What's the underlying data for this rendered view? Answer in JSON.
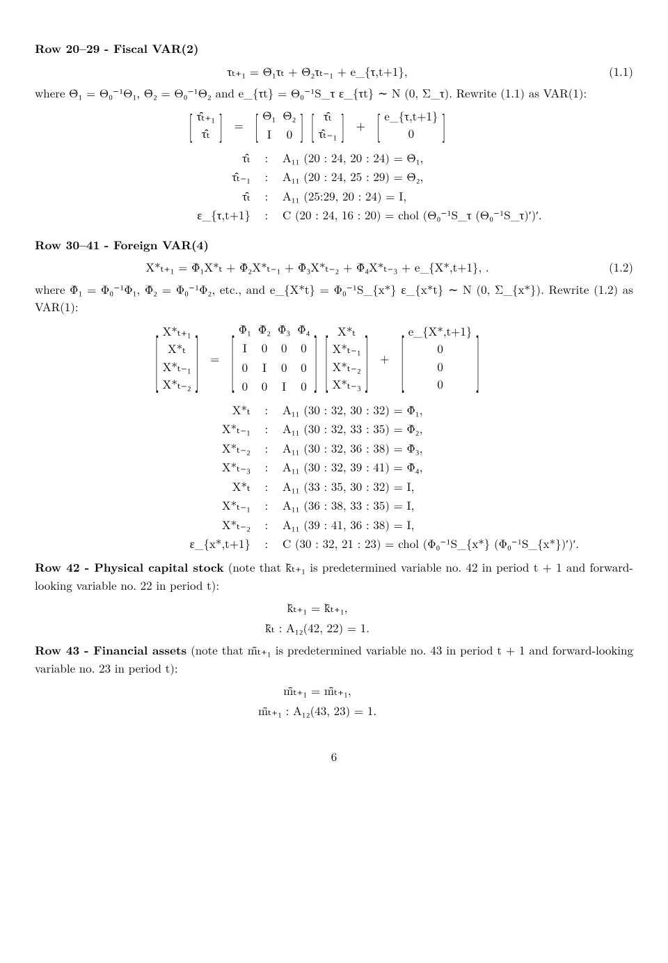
{
  "section1": {
    "heading": "Row 20–29 - Fiscal VAR(2)",
    "eq1_1": "τₜ₊₁ = Θ̃₁τₜ + Θ̃₂τₜ₋₁ + e_{τ,t+1},",
    "eq1_1_num": "(1.1)",
    "line_where": "where Θ̃₁ = Θ₀⁻¹Θ₁, Θ̃₂ = Θ₀⁻¹Θ₂ and e_{τt} = Θ₀⁻¹S_τ ε_{τt} ∼ N (0, Σ_τ). Rewrite (1.1) as VAR(1):",
    "mat_lhs_r1": "τ̂ₜ₊₁",
    "mat_lhs_r2": "τ̂ₜ",
    "matA_r1c1": "Θ̃₁",
    "matA_r1c2": "Θ̃₂",
    "matA_r2c1": "I",
    "matA_r2c2": "0",
    "mat_rhs_r1": "τ̂ₜ",
    "mat_rhs_r2": "τ̂ₜ₋₁",
    "mat_err_r1": "e_{τ,t+1}",
    "mat_err_r2": "0",
    "map1_l": "τ̂ₜ",
    "map1_r": "A₁₁ (20 : 24, 20 : 24) = Θ̃₁,",
    "map2_l": "τ̂ₜ₋₁",
    "map2_r": "A₁₁ (20 : 24, 25 : 29) = Θ̃₂,",
    "map3_l": "τ̂ₜ",
    "map3_r": "A₁₁ (25:29, 20 : 24) = I,",
    "map4_l": "ε_{τ,t+1}",
    "map4_r": "C (20 : 24, 16 : 20) = chol (Θ₀⁻¹S_τ (Θ₀⁻¹S_τ)′)′."
  },
  "section2": {
    "heading": "Row 30–41 - Foreign VAR(4)",
    "eq1_2": "X*ₜ₊₁ = Φ̃₁X*ₜ + Φ̃₂X*ₜ₋₁ + Φ̃₃X*ₜ₋₂ + Φ̃₄X*ₜ₋₃ + e_{X*,t+1}, .",
    "eq1_2_num": "(1.2)",
    "line_where": "where Φ̃₁ = Φ₀⁻¹Φ₁, Φ̃₂ = Φ₀⁻¹Φ₂, etc., and e_{X*t} = Φ₀⁻¹S_{x*} ε_{x*t} ∼ N (0, Σ_{x*}). Rewrite (1.2) as VAR(1):",
    "L1": "X*ₜ₊₁",
    "L2": "X*ₜ",
    "L3": "X*ₜ₋₁",
    "L4": "X*ₜ₋₂",
    "M11": "Φ̃₁",
    "M12": "Φ̃₂",
    "M13": "Φ̃₃",
    "M14": "Φ̃₄",
    "M21": "I",
    "M22": "0",
    "M23": "0",
    "M24": "0",
    "M31": "0",
    "M32": "I",
    "M33": "0",
    "M34": "0",
    "M41": "0",
    "M42": "0",
    "M43": "I",
    "M44": "0",
    "R1": "X*ₜ",
    "R2": "X*ₜ₋₁",
    "R3": "X*ₜ₋₂",
    "R4": "X*ₜ₋₃",
    "E1": "e_{X*,t+1}",
    "E2": "0",
    "E3": "0",
    "E4": "0",
    "m1_l": "X*ₜ",
    "m1_r": "A₁₁ (30 : 32, 30 : 32) = Φ̃₁,",
    "m2_l": "X*ₜ₋₁",
    "m2_r": "A₁₁ (30 : 32, 33 : 35) = Φ̃₂,",
    "m3_l": "X*ₜ₋₂",
    "m3_r": "A₁₁ (30 : 32, 36 : 38) = Φ̃₃,",
    "m4_l": "X*ₜ₋₃",
    "m4_r": "A₁₁ (30 : 32, 39 : 41) = Φ̃₄,",
    "m5_l": "X*ₜ",
    "m5_r": "A₁₁ (33 : 35, 30 : 32) = I,",
    "m6_l": "X*ₜ₋₁",
    "m6_r": "A₁₁ (36 : 38, 33 : 35) = I,",
    "m7_l": "X*ₜ₋₂",
    "m7_r": "A₁₁ (39 : 41, 36 : 38) = I,",
    "m8_l": "ε_{x*,t+1}",
    "m8_r": "C (30 : 32, 21 : 23) = chol (Φ₀⁻¹S_{x*} (Φ₀⁻¹S_{x*})′)′."
  },
  "section3": {
    "head_bold": "Row 42 - Physical capital stock",
    "head_rest": "  (note that k̄̂ₜ₊₁ is predetermined variable no. 42 in period t + 1 and forward-looking variable no. 22 in period t):",
    "eq_a": "k̄̂ₜ₊₁ = k̄̂ₜ₊₁,",
    "eq_b": "k̄̂ₜ : A₁₂(42, 22) = 1."
  },
  "section4": {
    "head_bold": "Row 43 - Financial assets",
    "head_rest": "  (note that m̄̂ₜ₊₁ is predetermined variable no. 43 in period t + 1 and forward-looking variable no. 23 in period t):",
    "eq_a": "m̄̂ₜ₊₁ = m̄̂ₜ₊₁,",
    "eq_b": "m̄̂ₜ₊₁ : A₁₂(43, 23) = 1."
  },
  "pagenum": "6"
}
